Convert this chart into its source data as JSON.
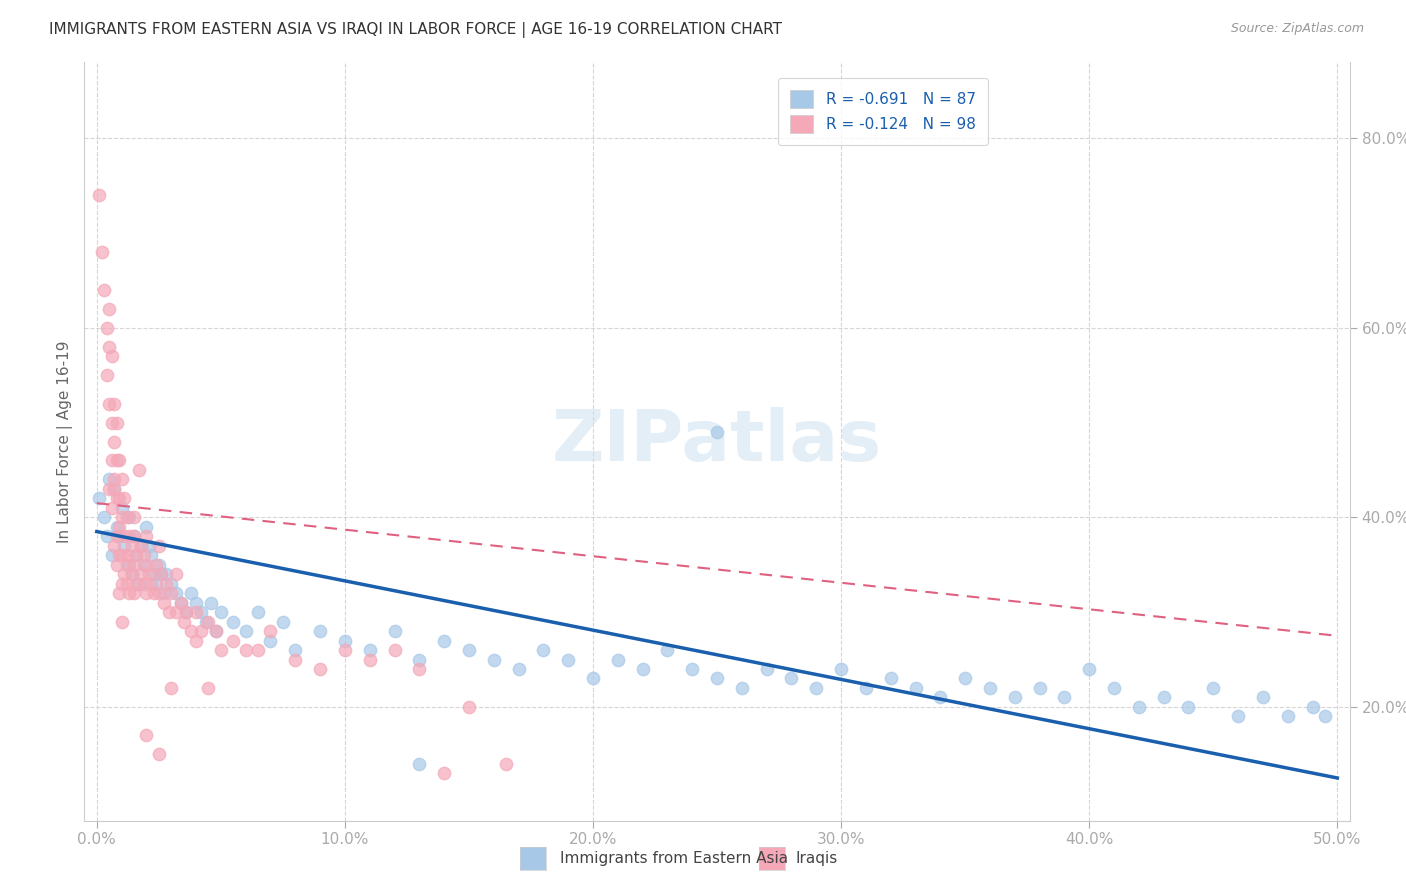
{
  "title": "IMMIGRANTS FROM EASTERN ASIA VS IRAQI IN LABOR FORCE | AGE 16-19 CORRELATION CHART",
  "source": "Source: ZipAtlas.com",
  "ylabel": "In Labor Force | Age 16-19",
  "xlim": [
    -0.005,
    0.505
  ],
  "ylim": [
    0.08,
    0.88
  ],
  "ytick_labels": [
    "20.0%",
    "40.0%",
    "60.0%",
    "80.0%"
  ],
  "ytick_values": [
    0.2,
    0.4,
    0.6,
    0.8
  ],
  "xtick_labels": [
    "0.0%",
    "10.0%",
    "20.0%",
    "30.0%",
    "40.0%",
    "50.0%"
  ],
  "xtick_values": [
    0.0,
    0.1,
    0.2,
    0.3,
    0.4,
    0.5
  ],
  "legend_label1": "R = -0.691   N = 87",
  "legend_label2": "R = -0.124   N = 98",
  "eastern_asia_color": "#a8c8e8",
  "iraqi_color": "#f4a8b8",
  "eastern_asia_line_color": "#1a5fad",
  "iraqi_line_color": "#e06080",
  "watermark_text": "ZIPatlas",
  "bottom_label1": "Immigrants from Eastern Asia",
  "bottom_label2": "Iraqis",
  "ea_line_x0": 0.0,
  "ea_line_y0": 0.385,
  "ea_line_x1": 0.5,
  "ea_line_y1": 0.125,
  "ir_line_x0": 0.0,
  "ir_line_y0": 0.415,
  "ir_line_x1": 0.5,
  "ir_line_y1": 0.275,
  "eastern_asia_points": [
    [
      0.001,
      0.42
    ],
    [
      0.003,
      0.4
    ],
    [
      0.004,
      0.38
    ],
    [
      0.005,
      0.44
    ],
    [
      0.006,
      0.36
    ],
    [
      0.007,
      0.43
    ],
    [
      0.008,
      0.39
    ],
    [
      0.009,
      0.38
    ],
    [
      0.01,
      0.41
    ],
    [
      0.011,
      0.37
    ],
    [
      0.012,
      0.35
    ],
    [
      0.013,
      0.4
    ],
    [
      0.014,
      0.34
    ],
    [
      0.015,
      0.38
    ],
    [
      0.016,
      0.36
    ],
    [
      0.017,
      0.33
    ],
    [
      0.018,
      0.37
    ],
    [
      0.019,
      0.35
    ],
    [
      0.02,
      0.39
    ],
    [
      0.021,
      0.37
    ],
    [
      0.022,
      0.36
    ],
    [
      0.023,
      0.34
    ],
    [
      0.024,
      0.33
    ],
    [
      0.025,
      0.35
    ],
    [
      0.026,
      0.34
    ],
    [
      0.027,
      0.32
    ],
    [
      0.028,
      0.34
    ],
    [
      0.03,
      0.33
    ],
    [
      0.032,
      0.32
    ],
    [
      0.034,
      0.31
    ],
    [
      0.036,
      0.3
    ],
    [
      0.038,
      0.32
    ],
    [
      0.04,
      0.31
    ],
    [
      0.042,
      0.3
    ],
    [
      0.044,
      0.29
    ],
    [
      0.046,
      0.31
    ],
    [
      0.048,
      0.28
    ],
    [
      0.05,
      0.3
    ],
    [
      0.055,
      0.29
    ],
    [
      0.06,
      0.28
    ],
    [
      0.065,
      0.3
    ],
    [
      0.07,
      0.27
    ],
    [
      0.075,
      0.29
    ],
    [
      0.08,
      0.26
    ],
    [
      0.09,
      0.28
    ],
    [
      0.1,
      0.27
    ],
    [
      0.11,
      0.26
    ],
    [
      0.12,
      0.28
    ],
    [
      0.13,
      0.25
    ],
    [
      0.14,
      0.27
    ],
    [
      0.15,
      0.26
    ],
    [
      0.16,
      0.25
    ],
    [
      0.17,
      0.24
    ],
    [
      0.18,
      0.26
    ],
    [
      0.19,
      0.25
    ],
    [
      0.2,
      0.23
    ],
    [
      0.21,
      0.25
    ],
    [
      0.22,
      0.24
    ],
    [
      0.23,
      0.26
    ],
    [
      0.24,
      0.24
    ],
    [
      0.25,
      0.23
    ],
    [
      0.26,
      0.22
    ],
    [
      0.27,
      0.24
    ],
    [
      0.28,
      0.23
    ],
    [
      0.29,
      0.22
    ],
    [
      0.3,
      0.24
    ],
    [
      0.31,
      0.22
    ],
    [
      0.32,
      0.23
    ],
    [
      0.33,
      0.22
    ],
    [
      0.34,
      0.21
    ],
    [
      0.35,
      0.23
    ],
    [
      0.36,
      0.22
    ],
    [
      0.37,
      0.21
    ],
    [
      0.38,
      0.22
    ],
    [
      0.39,
      0.21
    ],
    [
      0.4,
      0.24
    ],
    [
      0.41,
      0.22
    ],
    [
      0.42,
      0.2
    ],
    [
      0.43,
      0.21
    ],
    [
      0.44,
      0.2
    ],
    [
      0.45,
      0.22
    ],
    [
      0.46,
      0.19
    ],
    [
      0.47,
      0.21
    ],
    [
      0.48,
      0.19
    ],
    [
      0.49,
      0.2
    ],
    [
      0.495,
      0.19
    ],
    [
      0.25,
      0.49
    ],
    [
      0.13,
      0.14
    ]
  ],
  "iraqi_points": [
    [
      0.001,
      0.74
    ],
    [
      0.002,
      0.68
    ],
    [
      0.003,
      0.64
    ],
    [
      0.004,
      0.6
    ],
    [
      0.004,
      0.55
    ],
    [
      0.005,
      0.58
    ],
    [
      0.005,
      0.52
    ],
    [
      0.006,
      0.5
    ],
    [
      0.006,
      0.46
    ],
    [
      0.007,
      0.52
    ],
    [
      0.007,
      0.48
    ],
    [
      0.007,
      0.44
    ],
    [
      0.008,
      0.5
    ],
    [
      0.008,
      0.46
    ],
    [
      0.008,
      0.42
    ],
    [
      0.008,
      0.38
    ],
    [
      0.009,
      0.46
    ],
    [
      0.009,
      0.42
    ],
    [
      0.009,
      0.39
    ],
    [
      0.009,
      0.36
    ],
    [
      0.01,
      0.44
    ],
    [
      0.01,
      0.4
    ],
    [
      0.01,
      0.36
    ],
    [
      0.011,
      0.42
    ],
    [
      0.011,
      0.38
    ],
    [
      0.011,
      0.34
    ],
    [
      0.012,
      0.4
    ],
    [
      0.012,
      0.36
    ],
    [
      0.012,
      0.33
    ],
    [
      0.013,
      0.38
    ],
    [
      0.013,
      0.35
    ],
    [
      0.013,
      0.32
    ],
    [
      0.014,
      0.37
    ],
    [
      0.014,
      0.34
    ],
    [
      0.015,
      0.38
    ],
    [
      0.015,
      0.35
    ],
    [
      0.015,
      0.32
    ],
    [
      0.016,
      0.36
    ],
    [
      0.016,
      0.33
    ],
    [
      0.017,
      0.45
    ],
    [
      0.018,
      0.37
    ],
    [
      0.018,
      0.34
    ],
    [
      0.019,
      0.36
    ],
    [
      0.019,
      0.33
    ],
    [
      0.02,
      0.35
    ],
    [
      0.02,
      0.32
    ],
    [
      0.021,
      0.34
    ],
    [
      0.022,
      0.33
    ],
    [
      0.023,
      0.32
    ],
    [
      0.024,
      0.35
    ],
    [
      0.025,
      0.32
    ],
    [
      0.026,
      0.34
    ],
    [
      0.027,
      0.31
    ],
    [
      0.028,
      0.33
    ],
    [
      0.029,
      0.3
    ],
    [
      0.03,
      0.32
    ],
    [
      0.032,
      0.34
    ],
    [
      0.032,
      0.3
    ],
    [
      0.034,
      0.31
    ],
    [
      0.035,
      0.29
    ],
    [
      0.036,
      0.3
    ],
    [
      0.038,
      0.28
    ],
    [
      0.04,
      0.3
    ],
    [
      0.042,
      0.28
    ],
    [
      0.045,
      0.29
    ],
    [
      0.048,
      0.28
    ],
    [
      0.05,
      0.26
    ],
    [
      0.055,
      0.27
    ],
    [
      0.06,
      0.26
    ],
    [
      0.065,
      0.26
    ],
    [
      0.07,
      0.28
    ],
    [
      0.08,
      0.25
    ],
    [
      0.09,
      0.24
    ],
    [
      0.1,
      0.26
    ],
    [
      0.11,
      0.25
    ],
    [
      0.12,
      0.26
    ],
    [
      0.13,
      0.24
    ],
    [
      0.14,
      0.13
    ],
    [
      0.15,
      0.2
    ],
    [
      0.165,
      0.14
    ],
    [
      0.01,
      0.29
    ],
    [
      0.02,
      0.17
    ],
    [
      0.025,
      0.15
    ],
    [
      0.03,
      0.22
    ],
    [
      0.005,
      0.62
    ],
    [
      0.006,
      0.57
    ],
    [
      0.007,
      0.37
    ],
    [
      0.008,
      0.35
    ],
    [
      0.009,
      0.32
    ],
    [
      0.01,
      0.33
    ],
    [
      0.005,
      0.43
    ],
    [
      0.006,
      0.41
    ],
    [
      0.007,
      0.43
    ],
    [
      0.015,
      0.4
    ],
    [
      0.02,
      0.38
    ],
    [
      0.025,
      0.37
    ],
    [
      0.04,
      0.27
    ],
    [
      0.045,
      0.22
    ]
  ]
}
